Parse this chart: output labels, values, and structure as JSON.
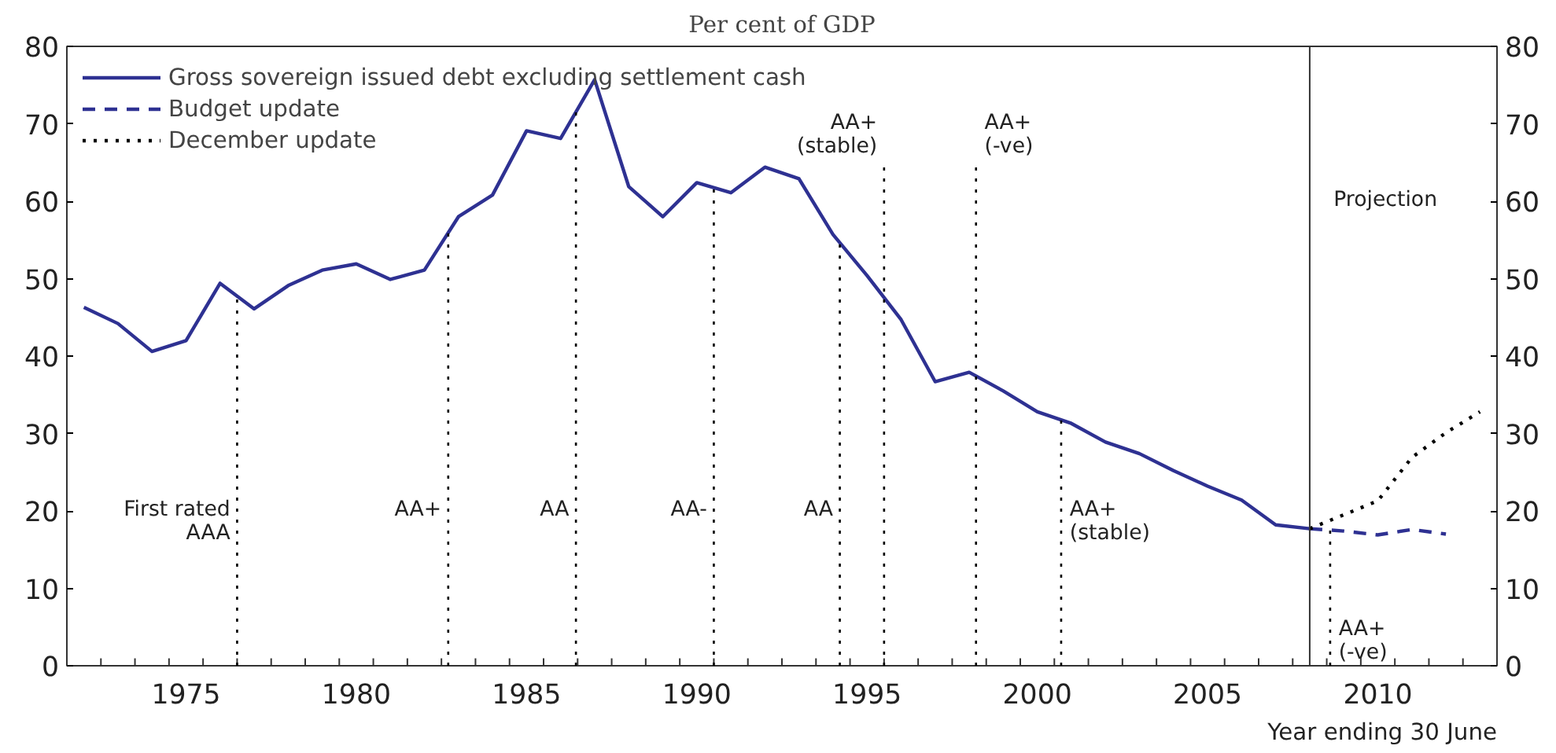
{
  "chart_data": {
    "type": "line",
    "title": "Per cent of GDP",
    "xlabel": "Year ending 30 June",
    "xlim": [
      1971.5,
      2013.5
    ],
    "ylim": [
      0,
      80
    ],
    "y2lim": [
      0,
      80
    ],
    "yticks": [
      0,
      10,
      20,
      30,
      40,
      50,
      60,
      70,
      80
    ],
    "y2ticks": [
      0,
      10,
      20,
      30,
      40,
      50,
      60,
      70,
      80
    ],
    "xticks": [
      1975,
      1980,
      1985,
      1990,
      1995,
      2000,
      2005,
      2010,
      {
        "value": 1971.5,
        "label": null
      },
      {
        "value": 1972.5,
        "label": null
      },
      {
        "value": 1973.5,
        "label": null
      },
      {
        "value": 1974.5,
        "label": null
      },
      {
        "value": 1975.5,
        "label": null
      },
      {
        "value": 1976.5,
        "label": null
      },
      {
        "value": 1977.5,
        "label": null
      },
      {
        "value": 1978.5,
        "label": null
      },
      {
        "value": 1979.5,
        "label": null
      },
      {
        "value": 1980.5,
        "label": null
      },
      {
        "value": 1981.5,
        "label": null
      },
      {
        "value": 1982.5,
        "label": null
      },
      {
        "value": 1983.5,
        "label": null
      },
      {
        "value": 1984.5,
        "label": null
      },
      {
        "value": 1985.5,
        "label": null
      },
      {
        "value": 1986.5,
        "label": null
      },
      {
        "value": 1987.5,
        "label": null
      },
      {
        "value": 1988.5,
        "label": null
      },
      {
        "value": 1989.5,
        "label": null
      },
      {
        "value": 1990.5,
        "label": null
      },
      {
        "value": 1991.5,
        "label": null
      },
      {
        "value": 1992.5,
        "label": null
      },
      {
        "value": 1993.5,
        "label": null
      },
      {
        "value": 1994.5,
        "label": null
      },
      {
        "value": 1995.5,
        "label": null
      },
      {
        "value": 1996.5,
        "label": null
      },
      {
        "value": 1997.5,
        "label": null
      },
      {
        "value": 1998.5,
        "label": null
      },
      {
        "value": 1999.5,
        "label": null
      },
      {
        "value": 2000.5,
        "label": null
      },
      {
        "value": 2001.5,
        "label": null
      },
      {
        "value": 2002.5,
        "label": null
      },
      {
        "value": 2003.5,
        "label": null
      },
      {
        "value": 2004.5,
        "label": null
      },
      {
        "value": 2005.5,
        "label": null
      },
      {
        "value": 2006.5,
        "label": null
      },
      {
        "value": 2007.5,
        "label": null
      },
      {
        "value": 2008.5,
        "label": null
      },
      {
        "value": 2009.5,
        "label": null
      },
      {
        "value": 2010.5,
        "label": null
      },
      {
        "value": 2011.5,
        "label": null
      },
      {
        "value": 2012.5,
        "label": null
      },
      {
        "value": 2013.5,
        "label": null
      }
    ],
    "legend": "top left",
    "grid": false,
    "marker": "none",
    "series": [
      {
        "name": "Gross sovereign issued debt excluding settlement cash",
        "color": "#2e3192",
        "line_style": "solid",
        "x": [
          1972,
          1973,
          1974,
          1975,
          1976,
          1977,
          1978,
          1979,
          1980,
          1981,
          1982,
          1983,
          1984,
          1985,
          1986,
          1987,
          1988,
          1989,
          1990,
          1991,
          1992,
          1993,
          1994,
          1995,
          1996,
          1997,
          1998,
          1999,
          2000,
          2001,
          2002,
          2003,
          2004,
          2005,
          2006,
          2007,
          2008
        ],
        "values": [
          46.3,
          44.2,
          40.6,
          42.0,
          49.4,
          46.1,
          49.1,
          51.1,
          51.9,
          49.9,
          51.1,
          58.0,
          60.8,
          69.1,
          68.1,
          75.7,
          61.9,
          58.0,
          62.4,
          61.1,
          64.4,
          62.9,
          55.7,
          50.4,
          44.7,
          36.7,
          37.9,
          35.5,
          32.8,
          31.3,
          28.9,
          27.4,
          25.2,
          23.2,
          21.4,
          18.2,
          17.7
        ]
      },
      {
        "name": "Budget update",
        "color": "#2e3192",
        "line_style": "dashed",
        "x": [
          2008,
          2009,
          2010,
          2011,
          2012
        ],
        "values": [
          17.7,
          17.4,
          16.9,
          17.6,
          17.0
        ]
      },
      {
        "name": "December update",
        "color": "#000000",
        "line_style": "dotted",
        "x": [
          2008,
          2009,
          2010,
          2011,
          2012,
          2013
        ],
        "values": [
          17.7,
          19.5,
          21.3,
          26.9,
          30.1,
          32.8
        ]
      }
    ],
    "ref_lines": [
      {
        "axis": "x",
        "value": 1976.5,
        "line_style": "dotted",
        "color": "#000000",
        "label": "First rated\nAAA"
      },
      {
        "axis": "x",
        "value": 1982.7,
        "line_style": "dotted",
        "color": "#000000",
        "label": "AA+"
      },
      {
        "axis": "x",
        "value": 1986.45,
        "line_style": "dotted",
        "color": "#000000",
        "label": "AA"
      },
      {
        "axis": "x",
        "value": 1990.5,
        "line_style": "dotted",
        "color": "#000000",
        "label": "AA-"
      },
      {
        "axis": "x",
        "value": 1994.2,
        "line_style": "dotted",
        "color": "#000000",
        "label": "AA"
      },
      {
        "axis": "x",
        "value": 1995.5,
        "line_style": "dotted",
        "color": "#000000",
        "label": "AA+\n(stable)"
      },
      {
        "axis": "x",
        "value": 1998.2,
        "line_style": "dotted",
        "color": "#000000",
        "label": "AA+\n(-ve)"
      },
      {
        "axis": "x",
        "value": 2000.7,
        "line_style": "dotted",
        "color": "#000000",
        "label": "AA+\n(stable)"
      },
      {
        "axis": "x",
        "value": 2008.6,
        "line_style": "dotted",
        "color": "#000000",
        "label": "AA+\n(-ve)"
      },
      {
        "axis": "x",
        "value": 2008.0,
        "line_style": "solid",
        "color": "#333333",
        "label": "Projection"
      }
    ]
  }
}
